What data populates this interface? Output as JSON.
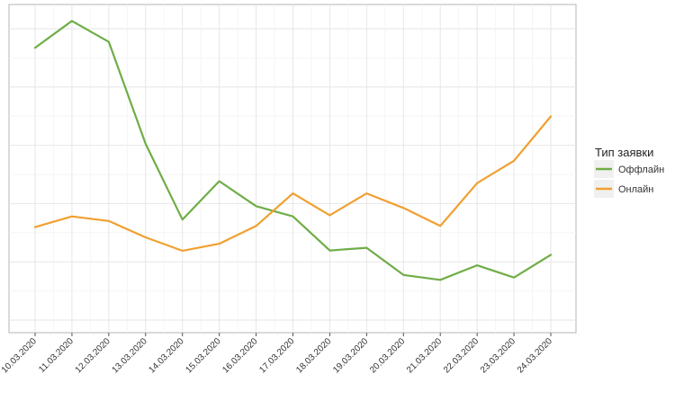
{
  "chart_data": {
    "type": "line",
    "title": "",
    "xlabel": "",
    "ylabel": "",
    "categories": [
      "10.03.2020",
      "11.03.2020",
      "12.03.2020",
      "13.03.2020",
      "14.03.2020",
      "15.03.2020",
      "16.03.2020",
      "17.03.2020",
      "18.03.2020",
      "19.03.2020",
      "20.03.2020",
      "21.03.2020",
      "22.03.2020",
      "23.03.2020",
      "24.03.2020"
    ],
    "y_tick_labels_visible": false,
    "ylim": [
      0,
      100
    ],
    "y_gridlines": [
      0,
      20,
      40,
      60,
      80,
      100
    ],
    "grid": true,
    "legend": {
      "title": "Тип заявки",
      "position": "right"
    },
    "series": [
      {
        "name": "Оффлайн",
        "color": "#70ad47",
        "values": [
          93.5,
          102.7,
          95.5,
          60.5,
          34.5,
          47.7,
          39.1,
          35.6,
          23.9,
          24.8,
          15.5,
          13.8,
          18.8,
          14.6,
          22.4
        ]
      },
      {
        "name": "Онлайн",
        "color": "#f0a030",
        "values": [
          31.9,
          35.6,
          34.0,
          28.4,
          23.8,
          26.2,
          32.3,
          43.5,
          36.0,
          43.5,
          38.5,
          32.3,
          47.0,
          54.7,
          69.9
        ]
      }
    ]
  }
}
